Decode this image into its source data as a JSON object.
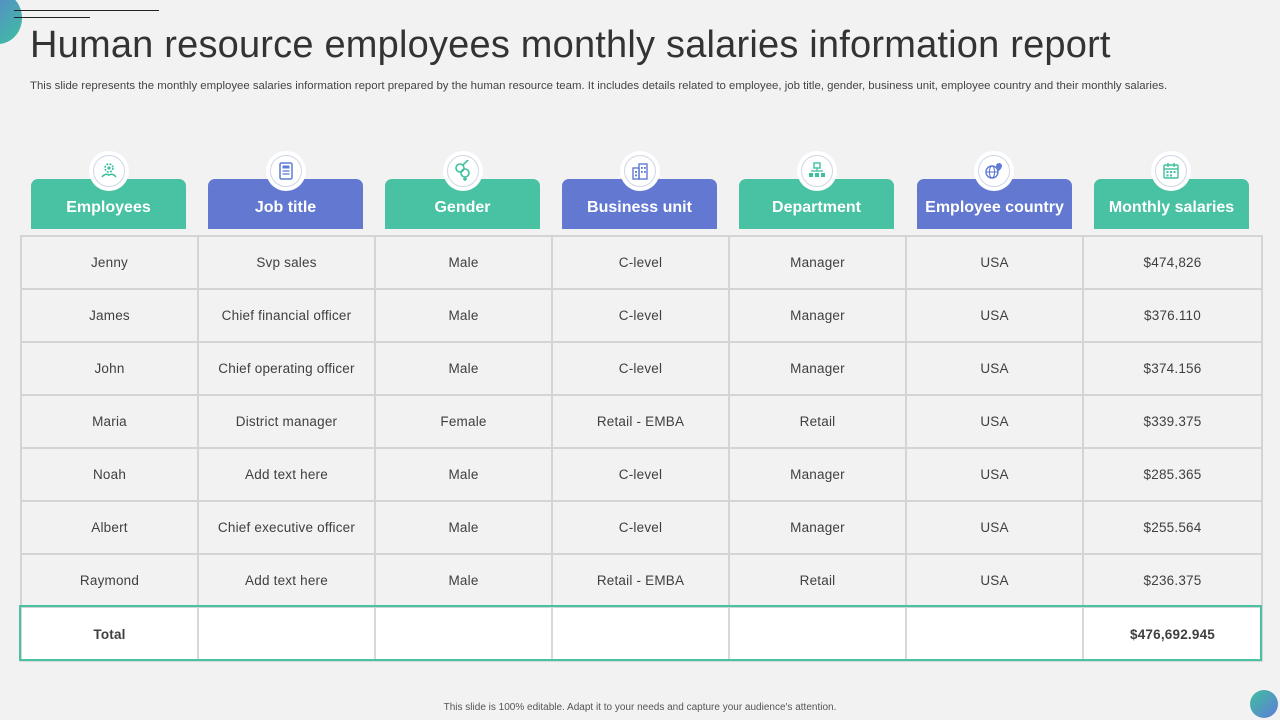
{
  "slide": {
    "title": "Human resource employees monthly salaries information report",
    "subtitle": "This slide represents the monthly employee salaries information report prepared by the human resource team. It includes details related to employee, job title, gender, business unit, employee country and their monthly salaries.",
    "footer": "This slide is 100% editable. Adapt it to your needs and capture your audience's attention."
  },
  "colors": {
    "teal": "#48c2a2",
    "blue": "#6278d1",
    "icon": "#5f7bd6",
    "icon_teal": "#3ec0a0"
  },
  "columns": [
    {
      "label": "Employees",
      "icon": "employee-cog-icon",
      "color": "teal"
    },
    {
      "label": "Job title",
      "icon": "id-card-icon",
      "color": "blue"
    },
    {
      "label": "Gender",
      "icon": "gender-symbols-icon",
      "color": "teal"
    },
    {
      "label": "Business unit",
      "icon": "building-icon",
      "color": "blue"
    },
    {
      "label": "Department",
      "icon": "org-chart-icon",
      "color": "teal"
    },
    {
      "label": "Employee country",
      "icon": "globe-location-icon",
      "color": "blue"
    },
    {
      "label": "Monthly salaries",
      "icon": "calendar-icon",
      "color": "teal"
    }
  ],
  "rows": [
    [
      "Jenny",
      "Svp sales",
      "Male",
      "C-level",
      "Manager",
      "USA",
      "$474,826"
    ],
    [
      "James",
      "Chief financial officer",
      "Male",
      "C-level",
      "Manager",
      "USA",
      "$376.110"
    ],
    [
      "John",
      "Chief operating officer",
      "Male",
      "C-level",
      "Manager",
      "USA",
      "$374.156"
    ],
    [
      "Maria",
      "District manager",
      "Female",
      "Retail - EMBA",
      "Retail",
      "USA",
      "$339.375"
    ],
    [
      "Noah",
      "Add text here",
      "Male",
      "C-level",
      "Manager",
      "USA",
      "$285.365"
    ],
    [
      "Albert",
      "Chief executive officer",
      "Male",
      "C-level",
      "Manager",
      "USA",
      "$255.564"
    ],
    [
      "Raymond",
      "Add text here",
      "Male",
      "Retail - EMBA",
      "Retail",
      "USA",
      "$236.375"
    ]
  ],
  "total": {
    "label": "Total",
    "value": "$476,692.945"
  }
}
